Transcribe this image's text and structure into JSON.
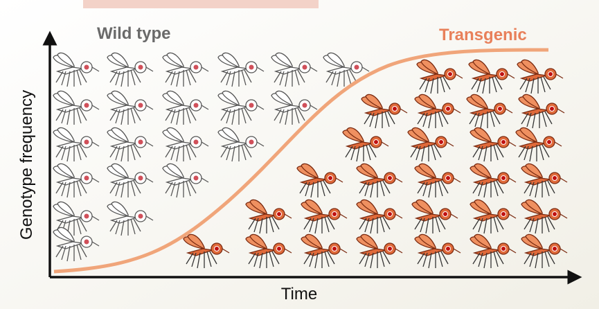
{
  "labels": {
    "wild_type": "Wild type",
    "transgenic": "Transgenic",
    "y_axis": "Genotype frequency",
    "x_axis": "Time"
  }
}
